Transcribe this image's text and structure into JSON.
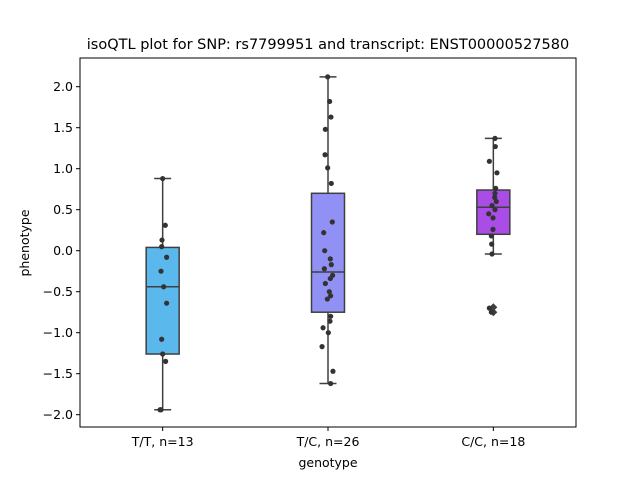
{
  "chart_data": {
    "type": "box",
    "title": "isoQTL plot for SNP: rs7799951 and transcript: ENST00000527580",
    "xlabel": "genotype",
    "ylabel": "phenotype",
    "ylim": [
      -2.15,
      2.35
    ],
    "yticks": [
      -2.0,
      -1.5,
      -1.0,
      -0.5,
      0.0,
      0.5,
      1.0,
      1.5,
      2.0
    ],
    "ytick_labels": [
      "−2.0",
      "−1.5",
      "−1.0",
      "−0.5",
      "0.0",
      "0.5",
      "1.0",
      "1.5",
      "2.0"
    ],
    "grid": false,
    "categories": [
      "T/T, n=13",
      "T/C, n=26",
      "C/C, n=18"
    ],
    "boxes": [
      {
        "category": "T/T, n=13",
        "color": "#5bb8ec",
        "q1": -1.26,
        "median": -0.44,
        "q3": 0.04,
        "whisker_low": -1.94,
        "whisker_high": 0.88,
        "outliers": [],
        "points": [
          {
            "dx": -0.08,
            "y": -1.94
          },
          {
            "dx": -0.05,
            "y": -1.94
          },
          {
            "dx": 0.0,
            "y": 0.88
          },
          {
            "dx": 0.08,
            "y": 0.31
          },
          {
            "dx": -0.02,
            "y": 0.13
          },
          {
            "dx": -0.03,
            "y": 0.05
          },
          {
            "dx": 0.12,
            "y": -0.08
          },
          {
            "dx": -0.05,
            "y": -0.25
          },
          {
            "dx": 0.03,
            "y": -0.44
          },
          {
            "dx": 0.12,
            "y": -0.64
          },
          {
            "dx": -0.03,
            "y": -1.08
          },
          {
            "dx": 0.0,
            "y": -1.26
          },
          {
            "dx": 0.09,
            "y": -1.35
          }
        ]
      },
      {
        "category": "T/C, n=26",
        "color": "#9191f5",
        "q1": -0.75,
        "median": -0.26,
        "q3": 0.7,
        "whisker_low": -1.62,
        "whisker_high": 2.12,
        "outliers": [],
        "points": [
          {
            "dx": -0.01,
            "y": 2.12
          },
          {
            "dx": 0.05,
            "y": 1.82
          },
          {
            "dx": 0.09,
            "y": 1.63
          },
          {
            "dx": -0.08,
            "y": 1.48
          },
          {
            "dx": -0.09,
            "y": 1.17
          },
          {
            "dx": -0.01,
            "y": 1.01
          },
          {
            "dx": 0.1,
            "y": 0.82
          },
          {
            "dx": 0.13,
            "y": 0.35
          },
          {
            "dx": -0.13,
            "y": 0.22
          },
          {
            "dx": -0.1,
            "y": 0.0
          },
          {
            "dx": 0.07,
            "y": -0.1
          },
          {
            "dx": 0.1,
            "y": -0.17
          },
          {
            "dx": -0.11,
            "y": -0.22
          },
          {
            "dx": 0.14,
            "y": -0.3
          },
          {
            "dx": 0.07,
            "y": -0.34
          },
          {
            "dx": -0.08,
            "y": -0.4
          },
          {
            "dx": 0.04,
            "y": -0.5
          },
          {
            "dx": 0.08,
            "y": -0.55
          },
          {
            "dx": -0.02,
            "y": -0.59
          },
          {
            "dx": 0.08,
            "y": -0.8
          },
          {
            "dx": 0.06,
            "y": -0.86
          },
          {
            "dx": -0.15,
            "y": -0.94
          },
          {
            "dx": 0.01,
            "y": -1.0
          },
          {
            "dx": -0.18,
            "y": -1.17
          },
          {
            "dx": 0.15,
            "y": -1.47
          },
          {
            "dx": 0.08,
            "y": -1.62
          }
        ]
      },
      {
        "category": "C/C, n=18",
        "color": "#a94de6",
        "q1": 0.2,
        "median": 0.53,
        "q3": 0.74,
        "whisker_low": -0.04,
        "whisker_high": 1.37,
        "outliers": [
          -0.69,
          -0.75
        ],
        "points": [
          {
            "dx": 0.05,
            "y": 1.37
          },
          {
            "dx": 0.06,
            "y": 1.27
          },
          {
            "dx": -0.12,
            "y": 1.09
          },
          {
            "dx": 0.11,
            "y": 0.95
          },
          {
            "dx": 0.07,
            "y": 0.76
          },
          {
            "dx": 0.05,
            "y": 0.7
          },
          {
            "dx": 0.04,
            "y": 0.65
          },
          {
            "dx": 0.09,
            "y": 0.6
          },
          {
            "dx": -0.04,
            "y": 0.55
          },
          {
            "dx": 0.05,
            "y": 0.5
          },
          {
            "dx": -0.14,
            "y": 0.45
          },
          {
            "dx": -0.01,
            "y": 0.4
          },
          {
            "dx": -0.01,
            "y": 0.26
          },
          {
            "dx": -0.06,
            "y": 0.18
          },
          {
            "dx": -0.05,
            "y": 0.08
          },
          {
            "dx": -0.04,
            "y": -0.04
          },
          {
            "dx": -0.12,
            "y": -0.7
          },
          {
            "dx": -0.06,
            "y": -0.75
          }
        ]
      }
    ]
  }
}
